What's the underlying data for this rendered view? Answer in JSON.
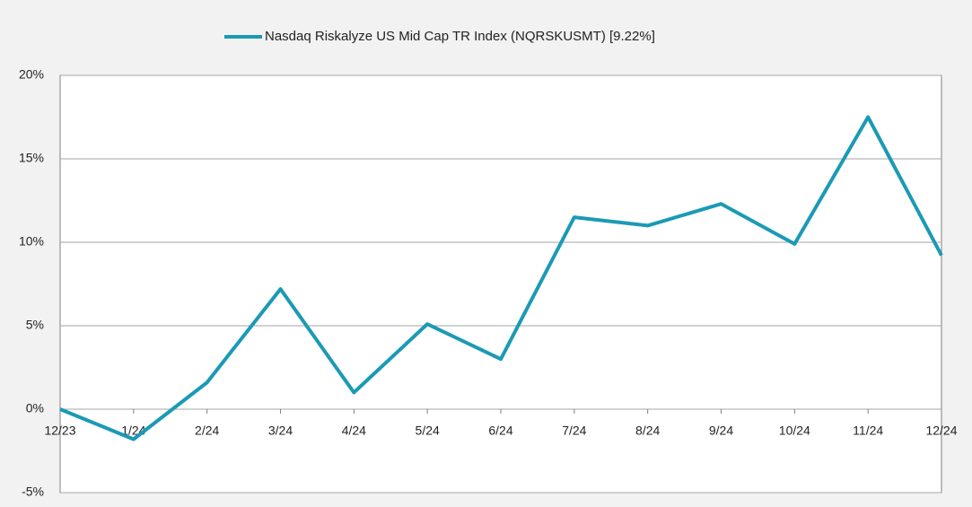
{
  "chart_data": {
    "type": "line",
    "categories": [
      "12/23",
      "1/24",
      "2/24",
      "3/24",
      "4/24",
      "5/24",
      "6/24",
      "7/24",
      "8/24",
      "9/24",
      "10/24",
      "11/24",
      "12/24"
    ],
    "series": [
      {
        "name": "Nasdaq Riskalyze US Mid Cap TR Index (NQRSKUSMT)  [9.22%]",
        "color": "#1b9ab4",
        "values": [
          0,
          -1.8,
          1.6,
          7.2,
          1.0,
          5.1,
          3.0,
          11.5,
          11.0,
          12.3,
          9.9,
          17.5,
          9.22
        ]
      }
    ],
    "ylim": [
      -5,
      20
    ],
    "yticks": [
      {
        "value": -5,
        "label": "-5%"
      },
      {
        "value": 0,
        "label": "0%"
      },
      {
        "value": 5,
        "label": "5%"
      },
      {
        "value": 10,
        "label": "10%"
      },
      {
        "value": 15,
        "label": "15%"
      },
      {
        "value": 20,
        "label": "20%"
      }
    ],
    "grid": true,
    "legend": "top"
  }
}
